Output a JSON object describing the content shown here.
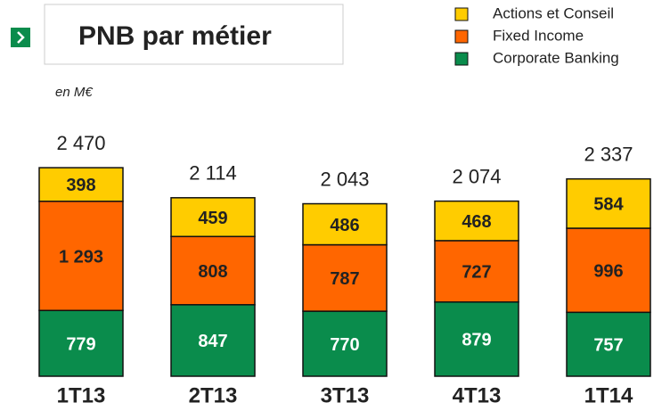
{
  "chart_data": {
    "type": "stacked_bar",
    "title": "PNB par métier",
    "subtitle": "en M€",
    "categories": [
      "1T13",
      "2T13",
      "3T13",
      "4T13",
      "1T14"
    ],
    "series": [
      {
        "name": "Corporate Banking",
        "color": "#0a8c4c",
        "values": [
          779,
          847,
          770,
          879,
          757
        ]
      },
      {
        "name": "Fixed Income",
        "color": "#ff6600",
        "values": [
          1293,
          808,
          787,
          727,
          996
        ],
        "value_labels": [
          "1 293",
          "808",
          "787",
          "727",
          "996"
        ]
      },
      {
        "name": "Actions et Conseil",
        "color": "#ffcc00",
        "values": [
          398,
          459,
          486,
          468,
          584
        ]
      }
    ],
    "totals": [
      2470,
      2114,
      2043,
      2074,
      2337
    ],
    "total_labels": [
      "2 470",
      "2 114",
      "2 043",
      "2 074",
      "2 337"
    ],
    "legend": "top-right"
  }
}
